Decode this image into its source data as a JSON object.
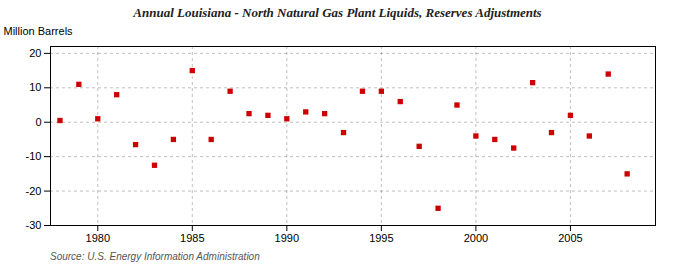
{
  "chart_data": {
    "type": "scatter",
    "title": "Annual Louisiana - North Natural Gas Plant Liquids, Reserves Adjustments",
    "ylabel": "Million Barrels",
    "annotation": "Source: U.S. Energy Information Administration",
    "x": [
      1978,
      1979,
      1980,
      1981,
      1982,
      1983,
      1984,
      1985,
      1986,
      1987,
      1988,
      1989,
      1990,
      1991,
      1992,
      1993,
      1994,
      1995,
      1996,
      1997,
      1998,
      1999,
      2000,
      2001,
      2002,
      2003,
      2004,
      2005,
      2006,
      2007,
      2008
    ],
    "values": [
      0.5,
      11.0,
      1.0,
      8.0,
      -6.5,
      -12.5,
      -5.0,
      15.0,
      -5.0,
      9.0,
      2.5,
      2.0,
      1.0,
      3.0,
      2.5,
      -3.0,
      9.0,
      9.0,
      6.0,
      -7.0,
      -25.0,
      5.0,
      -4.0,
      -5.0,
      -7.5,
      11.5,
      -3.0,
      2.0,
      -4.0,
      14.0,
      -15.0
    ],
    "color": "#cc0000",
    "marker": "square",
    "xlim": [
      1977.5,
      2009.5
    ],
    "ylim": [
      -30,
      22
    ],
    "xticks": [
      1980,
      1985,
      1990,
      1995,
      2000,
      2005
    ],
    "yticks": [
      -30,
      -20,
      -10,
      0,
      10,
      20
    ],
    "grid": true
  }
}
